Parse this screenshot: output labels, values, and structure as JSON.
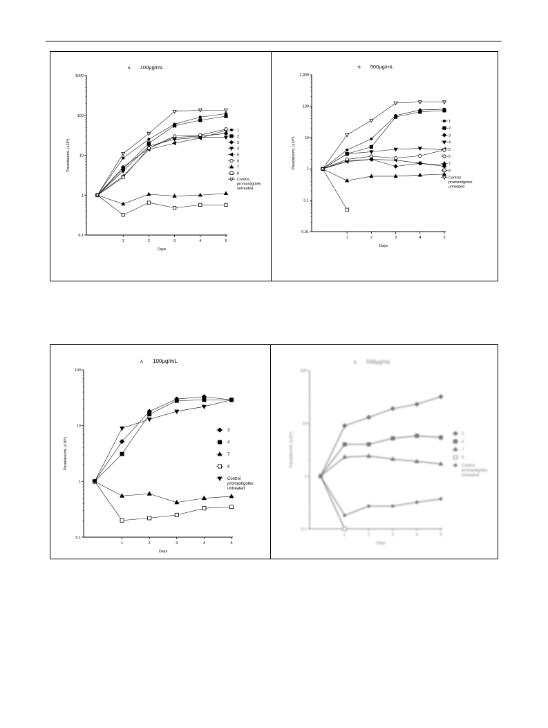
{
  "charts": [
    {
      "type": "line",
      "panel": "A",
      "title": "100μg/mL",
      "xlabel": "Days",
      "ylabel": "Parasites/mL (x10⁶)",
      "y_scale": "log",
      "ylim": [
        0.1,
        1000
      ],
      "y_ticks": [
        "0.1",
        "1",
        "10",
        "100",
        "1000"
      ],
      "x_ticks": [
        1,
        2,
        3,
        4,
        5
      ],
      "x": [
        0,
        1,
        2,
        3,
        4,
        5
      ],
      "legend_placement": "right",
      "series": [
        {
          "name": "1",
          "marker": "dot",
          "values": [
            1,
            8.5,
            25,
            60,
            90,
            110
          ]
        },
        {
          "name": "2",
          "marker": "square",
          "values": [
            1,
            4.5,
            20,
            55,
            75,
            95
          ]
        },
        {
          "name": "3",
          "marker": "diamond",
          "values": [
            1,
            5,
            15,
            28,
            30,
            35
          ]
        },
        {
          "name": "4",
          "marker": "triangle-down",
          "values": [
            1,
            4,
            17,
            25,
            28,
            28
          ]
        },
        {
          "name": "5",
          "marker": "triangle-left",
          "values": [
            1,
            3,
            14,
            20,
            27,
            42
          ]
        },
        {
          "name": "6",
          "marker": "circle-open",
          "values": [
            1,
            2.8,
            15,
            30,
            32,
            45
          ]
        },
        {
          "name": "7",
          "marker": "triangle-up",
          "values": [
            1,
            0.6,
            1.05,
            0.95,
            1.0,
            1.1
          ]
        },
        {
          "name": "8",
          "marker": "square-open",
          "values": [
            1,
            0.32,
            0.65,
            0.48,
            0.57,
            0.57
          ]
        },
        {
          "name": "Control promastigotes untreated",
          "marker": "triangle-down-open",
          "values": [
            1,
            11,
            35,
            125,
            135,
            135
          ]
        }
      ]
    },
    {
      "type": "line",
      "panel": "B",
      "title": "500μg/mL",
      "xlabel": "Days",
      "ylabel": "Parasites/mL (x10⁶)",
      "y_scale": "log",
      "ylim": [
        0.01,
        1000
      ],
      "y_ticks": [
        "0.01",
        "0.1",
        "1",
        "10",
        "100",
        "1,000"
      ],
      "x_ticks": [
        1,
        2,
        3,
        4,
        5
      ],
      "x": [
        0,
        1,
        2,
        3,
        4,
        5
      ],
      "legend_placement": "right",
      "series": [
        {
          "name": "1",
          "marker": "dot",
          "values": [
            1,
            4,
            9,
            50,
            75,
            80
          ]
        },
        {
          "name": "2",
          "marker": "square",
          "values": [
            1,
            3,
            5,
            45,
            65,
            72
          ]
        },
        {
          "name": "3",
          "marker": "diamond",
          "values": [
            1,
            1.8,
            2.0,
            1.2,
            1.5,
            1.2
          ]
        },
        {
          "name": "4",
          "marker": "triangle-down",
          "values": [
            1,
            3,
            3.5,
            4.2,
            4.5,
            4.0
          ]
        },
        {
          "name": "5",
          "marker": "triangle-left",
          "values": [
            1,
            1.7,
            2.0,
            1.9,
            1.5,
            1.3
          ]
        },
        {
          "name": "6",
          "marker": "circle-open",
          "values": [
            1,
            2.0,
            2.5,
            2.2,
            2.6,
            4.0
          ]
        },
        {
          "name": "7",
          "marker": "triangle-up",
          "values": [
            1,
            0.42,
            0.58,
            0.58,
            0.63,
            0.68
          ]
        },
        {
          "name": "8",
          "marker": "square-open",
          "values": [
            1,
            0.05,
            null,
            null,
            null,
            null
          ]
        },
        {
          "name": "Control promastigotes untreated",
          "marker": "triangle-down-open",
          "values": [
            1,
            12,
            35,
            125,
            135,
            135
          ]
        }
      ]
    },
    {
      "type": "line",
      "panel": "A",
      "title": "100μg/mL",
      "xlabel": "Days",
      "ylabel": "Parasites/mL (x10⁶)",
      "y_scale": "log",
      "ylim": [
        0.1,
        100
      ],
      "y_ticks": [
        "0.1",
        "1",
        "10",
        "100"
      ],
      "x_ticks": [
        1,
        2,
        3,
        4,
        5
      ],
      "x": [
        0,
        1,
        2,
        3,
        4,
        5
      ],
      "legend_placement": "right",
      "series": [
        {
          "name": "3",
          "marker": "diamond",
          "values": [
            1,
            5.2,
            18,
            30,
            33,
            29
          ]
        },
        {
          "name": "4",
          "marker": "square",
          "values": [
            1,
            3.1,
            16,
            28,
            29,
            29
          ]
        },
        {
          "name": "7",
          "marker": "triangle-up",
          "values": [
            1,
            0.55,
            0.6,
            0.42,
            0.5,
            0.54
          ]
        },
        {
          "name": "8",
          "marker": "square-open",
          "values": [
            1,
            0.2,
            0.22,
            0.25,
            0.33,
            0.35
          ]
        },
        {
          "name": "Control promastigotes untreated",
          "marker": "triangle-down",
          "values": [
            1,
            9,
            13,
            18,
            22,
            29
          ]
        }
      ]
    },
    {
      "type": "line",
      "panel": "B",
      "title": "500μg/mL",
      "xlabel": "Days",
      "ylabel": "Parasites/mL (x10⁶)",
      "y_scale": "log",
      "ylim": [
        0.1,
        100
      ],
      "y_ticks": [
        "0.1",
        "1",
        "10",
        "100"
      ],
      "x_ticks": [
        1,
        2,
        3,
        4,
        5
      ],
      "x": [
        0,
        1,
        2,
        3,
        4,
        5
      ],
      "legend_placement": "right",
      "series": [
        {
          "name": "3",
          "marker": "diamond",
          "values": [
            1,
            9,
            13,
            19,
            23,
            32
          ]
        },
        {
          "name": "4",
          "marker": "square",
          "values": [
            1,
            4,
            4,
            5.2,
            5.8,
            5.4
          ]
        },
        {
          "name": "7",
          "marker": "triangle-up",
          "values": [
            1,
            2.3,
            2.4,
            2.1,
            1.9,
            1.7
          ]
        },
        {
          "name": "8",
          "marker": "square-open",
          "values": [
            1,
            0.1,
            null,
            null,
            null,
            null
          ]
        },
        {
          "name": "Control promastigotes untreated",
          "marker": "dot",
          "values": [
            1,
            0.18,
            0.27,
            0.27,
            0.32,
            0.37
          ]
        }
      ]
    }
  ]
}
